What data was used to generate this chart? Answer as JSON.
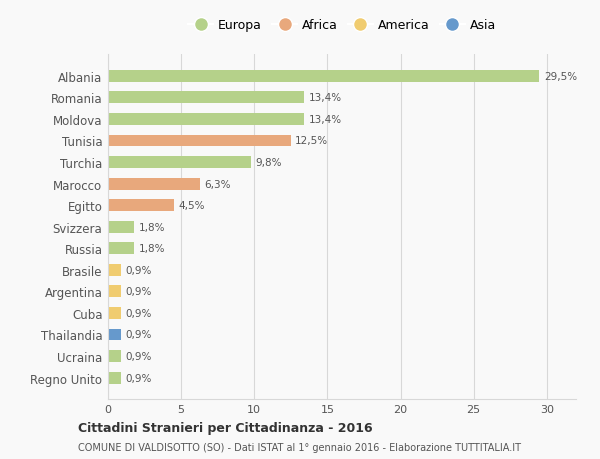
{
  "categories": [
    "Albania",
    "Romania",
    "Moldova",
    "Tunisia",
    "Turchia",
    "Marocco",
    "Egitto",
    "Svizzera",
    "Russia",
    "Brasile",
    "Argentina",
    "Cuba",
    "Thailandia",
    "Ucraina",
    "Regno Unito"
  ],
  "values": [
    29.5,
    13.4,
    13.4,
    12.5,
    9.8,
    6.3,
    4.5,
    1.8,
    1.8,
    0.9,
    0.9,
    0.9,
    0.9,
    0.9,
    0.9
  ],
  "labels": [
    "29,5%",
    "13,4%",
    "13,4%",
    "12,5%",
    "9,8%",
    "6,3%",
    "4,5%",
    "1,8%",
    "1,8%",
    "0,9%",
    "0,9%",
    "0,9%",
    "0,9%",
    "0,9%",
    "0,9%"
  ],
  "continent": [
    "Europa",
    "Europa",
    "Europa",
    "Africa",
    "Europa",
    "Africa",
    "Africa",
    "Europa",
    "Europa",
    "America",
    "America",
    "America",
    "Asia",
    "Europa",
    "Europa"
  ],
  "colors": {
    "Europa": "#b5d18a",
    "Africa": "#e8a87c",
    "America": "#f0cc70",
    "Asia": "#6699cc"
  },
  "xlim": [
    0,
    32
  ],
  "title": "Cittadini Stranieri per Cittadinanza - 2016",
  "subtitle": "COMUNE DI VALDISOTTO (SO) - Dati ISTAT al 1° gennaio 2016 - Elaborazione TUTTITALIA.IT",
  "background_color": "#f9f9f9",
  "grid_color": "#d8d8d8",
  "text_color": "#555555",
  "legend_items": [
    "Europa",
    "Africa",
    "America",
    "Asia"
  ],
  "xticks": [
    0,
    5,
    10,
    15,
    20,
    25,
    30
  ]
}
